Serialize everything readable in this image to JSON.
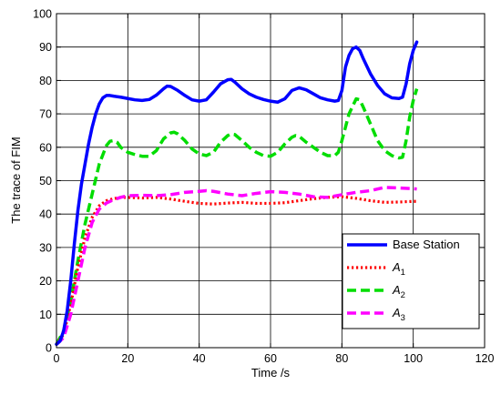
{
  "chart_data": {
    "type": "line",
    "xlabel": "Time /s",
    "ylabel": "The trace of FIM",
    "xlim": [
      0,
      120
    ],
    "ylim": [
      0,
      100
    ],
    "xticks": [
      0,
      20,
      40,
      60,
      80,
      100,
      120
    ],
    "yticks": [
      0,
      10,
      20,
      30,
      40,
      50,
      60,
      70,
      80,
      90,
      100
    ],
    "grid": true,
    "legend_position": "bottom-right",
    "series": [
      {
        "name": "Base Station",
        "color": "#0000ff",
        "style": "solid",
        "points": [
          [
            0,
            1
          ],
          [
            1,
            2
          ],
          [
            2,
            5
          ],
          [
            3,
            11
          ],
          [
            4,
            20
          ],
          [
            5,
            31
          ],
          [
            6,
            41
          ],
          [
            7,
            49
          ],
          [
            8,
            55
          ],
          [
            9,
            61
          ],
          [
            10,
            66
          ],
          [
            11,
            70
          ],
          [
            12,
            73
          ],
          [
            13,
            74.8
          ],
          [
            14,
            75.5
          ],
          [
            15,
            75.5
          ],
          [
            16,
            75.3
          ],
          [
            18,
            75
          ],
          [
            20,
            74.6
          ],
          [
            22,
            74.2
          ],
          [
            24,
            74
          ],
          [
            26,
            74.3
          ],
          [
            28,
            75.6
          ],
          [
            30,
            77.5
          ],
          [
            31,
            78.3
          ],
          [
            32,
            78.2
          ],
          [
            34,
            77
          ],
          [
            36,
            75.5
          ],
          [
            38,
            74.2
          ],
          [
            40,
            73.8
          ],
          [
            42,
            74.2
          ],
          [
            44,
            76.5
          ],
          [
            46,
            79
          ],
          [
            48,
            80.2
          ],
          [
            49,
            80.3
          ],
          [
            50,
            79.5
          ],
          [
            52,
            77.5
          ],
          [
            54,
            76
          ],
          [
            56,
            75
          ],
          [
            58,
            74.3
          ],
          [
            60,
            73.8
          ],
          [
            62,
            73.5
          ],
          [
            64,
            74.5
          ],
          [
            66,
            77
          ],
          [
            68,
            77.8
          ],
          [
            70,
            77.2
          ],
          [
            72,
            76
          ],
          [
            74,
            74.8
          ],
          [
            76,
            74.2
          ],
          [
            78,
            73.8
          ],
          [
            79,
            74
          ],
          [
            80,
            77
          ],
          [
            81,
            84
          ],
          [
            82,
            87.5
          ],
          [
            83,
            89.5
          ],
          [
            84,
            90
          ],
          [
            85,
            89
          ],
          [
            86,
            86.5
          ],
          [
            88,
            82
          ],
          [
            90,
            78.5
          ],
          [
            92,
            76
          ],
          [
            94,
            74.8
          ],
          [
            96,
            74.6
          ],
          [
            97,
            75
          ],
          [
            98,
            79
          ],
          [
            99,
            85
          ],
          [
            100,
            89
          ],
          [
            101,
            91.5
          ]
        ]
      },
      {
        "name": "A1",
        "color": "#ff0000",
        "style": "dotted",
        "points": [
          [
            0,
            1
          ],
          [
            2,
            4
          ],
          [
            4,
            13
          ],
          [
            6,
            24
          ],
          [
            8,
            33
          ],
          [
            10,
            39
          ],
          [
            12,
            42.5
          ],
          [
            14,
            44
          ],
          [
            16,
            44.6
          ],
          [
            18,
            45
          ],
          [
            20,
            45
          ],
          [
            24,
            44.8
          ],
          [
            28,
            45
          ],
          [
            32,
            44.5
          ],
          [
            36,
            43.8
          ],
          [
            40,
            43.2
          ],
          [
            44,
            43
          ],
          [
            48,
            43.3
          ],
          [
            52,
            43.5
          ],
          [
            56,
            43.2
          ],
          [
            60,
            43.2
          ],
          [
            64,
            43.4
          ],
          [
            68,
            44
          ],
          [
            72,
            44.6
          ],
          [
            76,
            45
          ],
          [
            80,
            45.2
          ],
          [
            84,
            44.7
          ],
          [
            88,
            44
          ],
          [
            92,
            43.5
          ],
          [
            96,
            43.6
          ],
          [
            100,
            43.8
          ],
          [
            101,
            43.8
          ]
        ]
      },
      {
        "name": "A2",
        "color": "#00dd00",
        "style": "dashed",
        "points": [
          [
            0,
            1
          ],
          [
            2,
            5
          ],
          [
            4,
            14
          ],
          [
            6,
            26
          ],
          [
            8,
            37
          ],
          [
            10,
            46
          ],
          [
            12,
            55
          ],
          [
            14,
            60.5
          ],
          [
            15,
            61.8
          ],
          [
            16,
            62
          ],
          [
            17,
            61.5
          ],
          [
            18,
            60
          ],
          [
            20,
            58.5
          ],
          [
            22,
            57.8
          ],
          [
            24,
            57.3
          ],
          [
            26,
            57.3
          ],
          [
            28,
            59
          ],
          [
            30,
            62.5
          ],
          [
            32,
            64.3
          ],
          [
            33,
            64.5
          ],
          [
            34,
            64
          ],
          [
            36,
            62
          ],
          [
            38,
            59.5
          ],
          [
            40,
            58
          ],
          [
            42,
            57.5
          ],
          [
            44,
            58.5
          ],
          [
            46,
            61.5
          ],
          [
            48,
            63.5
          ],
          [
            49,
            64
          ],
          [
            50,
            63.8
          ],
          [
            52,
            62
          ],
          [
            54,
            60
          ],
          [
            56,
            58.5
          ],
          [
            58,
            57.5
          ],
          [
            60,
            57.3
          ],
          [
            62,
            58.5
          ],
          [
            64,
            61
          ],
          [
            66,
            63
          ],
          [
            67,
            63.5
          ],
          [
            68,
            63.3
          ],
          [
            70,
            61.5
          ],
          [
            72,
            60
          ],
          [
            74,
            58.5
          ],
          [
            76,
            57.5
          ],
          [
            78,
            57.5
          ],
          [
            79,
            58.5
          ],
          [
            80,
            62
          ],
          [
            82,
            70
          ],
          [
            84,
            74.5
          ],
          [
            85,
            74.2
          ],
          [
            86,
            72
          ],
          [
            88,
            67
          ],
          [
            90,
            62
          ],
          [
            92,
            59
          ],
          [
            94,
            57.5
          ],
          [
            96,
            56.8
          ],
          [
            97,
            57
          ],
          [
            98,
            62
          ],
          [
            99,
            69
          ],
          [
            100,
            74
          ],
          [
            101,
            77.5
          ]
        ]
      },
      {
        "name": "A3",
        "color": "#ff00ff",
        "style": "dashed",
        "points": [
          [
            0,
            1
          ],
          [
            2,
            3
          ],
          [
            4,
            10
          ],
          [
            6,
            20
          ],
          [
            8,
            30
          ],
          [
            10,
            37.5
          ],
          [
            12,
            41.5
          ],
          [
            14,
            43.3
          ],
          [
            16,
            44.3
          ],
          [
            18,
            45
          ],
          [
            20,
            45.5
          ],
          [
            24,
            45.6
          ],
          [
            28,
            45.5
          ],
          [
            32,
            45.8
          ],
          [
            36,
            46.5
          ],
          [
            40,
            46.8
          ],
          [
            42,
            47
          ],
          [
            44,
            46.8
          ],
          [
            48,
            46
          ],
          [
            52,
            45.5
          ],
          [
            56,
            46.2
          ],
          [
            60,
            46.7
          ],
          [
            64,
            46.5
          ],
          [
            68,
            46
          ],
          [
            72,
            45.2
          ],
          [
            76,
            45
          ],
          [
            80,
            45.8
          ],
          [
            84,
            46.5
          ],
          [
            88,
            47
          ],
          [
            92,
            48
          ],
          [
            96,
            47.8
          ],
          [
            100,
            47.6
          ],
          [
            101,
            47.5
          ]
        ]
      }
    ]
  }
}
